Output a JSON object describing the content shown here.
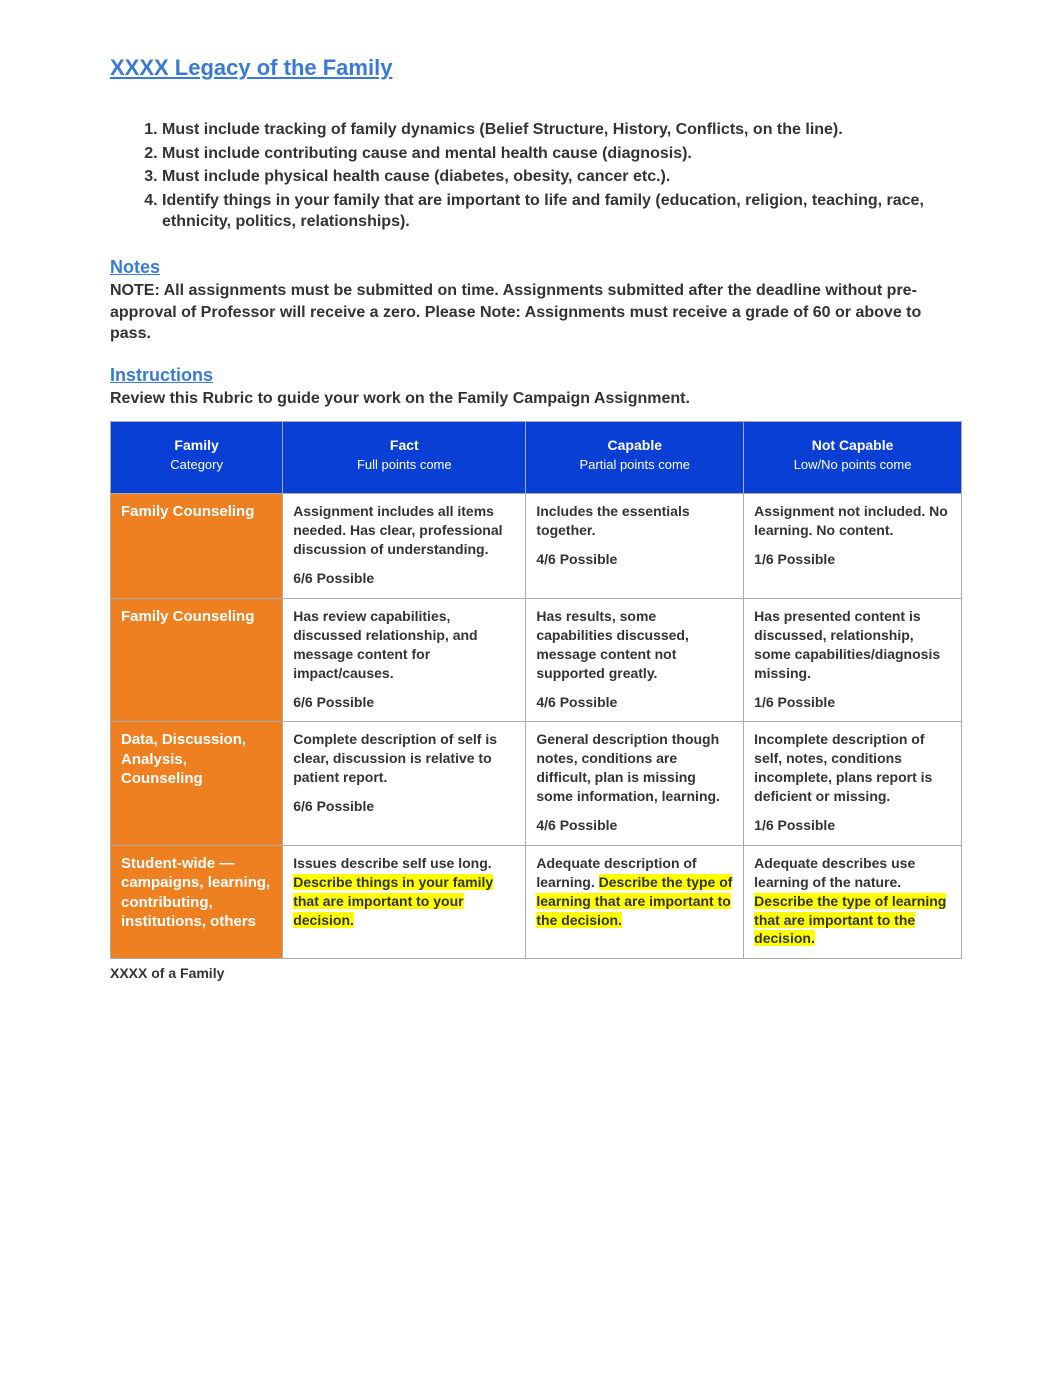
{
  "colors": {
    "heading_blue": "#3a7ad6",
    "table_header_blue": "#0a3fd6",
    "row_header_orange": "#ee8022",
    "highlight_yellow": "#ffff00",
    "text": "#333333",
    "border": "#aaaaaa",
    "background": "#ffffff"
  },
  "typography": {
    "body_fontsize": 16,
    "table_fontsize": 14,
    "heading_fontsize": 22,
    "section_heading_fontsize": 18
  },
  "headings": {
    "main": "XXXX Legacy of the Family",
    "notes": "Notes",
    "instructions": "Instructions"
  },
  "intro_items": [
    "Must include tracking of family dynamics (Belief Structure, History, Conflicts, on the line).",
    "Must include contributing cause and mental health cause (diagnosis).",
    "Must include physical health cause (diabetes, obesity, cancer etc.).",
    "Identify things in your family that are important to life and family (education, religion, teaching, race, ethnicity, politics, relationships)."
  ],
  "notes_body": "NOTE:  All assignments must be submitted on time. Assignments submitted after the deadline without pre-approval of Professor will receive a zero. Please Note: Assignments must receive a grade of 60 or above to pass.",
  "instructions_body": "Review this Rubric to guide your work on the Family Campaign Assignment.",
  "table": {
    "columns": [
      {
        "title": "Family",
        "subtitle": "Category"
      },
      {
        "title": "Fact",
        "subtitle": "Full points come"
      },
      {
        "title": "Capable",
        "subtitle": "Partial points come"
      },
      {
        "title": "Not Capable",
        "subtitle": "Low/No points come"
      }
    ],
    "rows": [
      {
        "header": "Family Counseling",
        "cells": [
          {
            "body": "Assignment includes all items needed. Has clear, professional discussion of understanding.",
            "pts": "6/6 Possible"
          },
          {
            "body": "Includes the essentials together.",
            "pts": "4/6 Possible"
          },
          {
            "body": "Assignment not included.\nNo learning.\nNo content.",
            "pts": "1/6 Possible"
          }
        ]
      },
      {
        "header": "Family Counseling",
        "cells": [
          {
            "body": "Has review capabilities, discussed relationship, and message content for impact/causes.",
            "pts": "6/6 Possible"
          },
          {
            "body": "Has results, some capabilities discussed, message content not supported greatly.",
            "pts": "4/6 Possible"
          },
          {
            "body": "Has presented content is discussed, relationship, some capabilities/diagnosis missing.",
            "pts": "1/6 Possible"
          }
        ]
      },
      {
        "header": "Data, Discussion, Analysis, Counseling",
        "cells": [
          {
            "body": "Complete description of self is clear, discussion is relative to patient report.",
            "pts": "6/6 Possible"
          },
          {
            "body": "General description though notes, conditions are difficult, plan is missing some information, learning.",
            "pts": "4/6 Possible"
          },
          {
            "body": "Incomplete description of self, notes, conditions incomplete, plans report is deficient or missing.",
            "pts": "1/6 Possible"
          }
        ]
      },
      {
        "header": "Student-wide — campaigns, learning, contributing, institutions, others",
        "cells": [
          {
            "body": "Issues describe self use long.",
            "pts": "",
            "highlight": "Describe things in your family that are important to your decision."
          },
          {
            "body": "Adequate description of learning.",
            "pts": "",
            "highlight": "Describe the type of learning that are important to the decision."
          },
          {
            "body": "Adequate describes use learning of the nature.",
            "pts": "",
            "highlight": "Describe the type of learning that are important to the decision."
          }
        ]
      }
    ]
  },
  "footer_note": "XXXX of a Family"
}
